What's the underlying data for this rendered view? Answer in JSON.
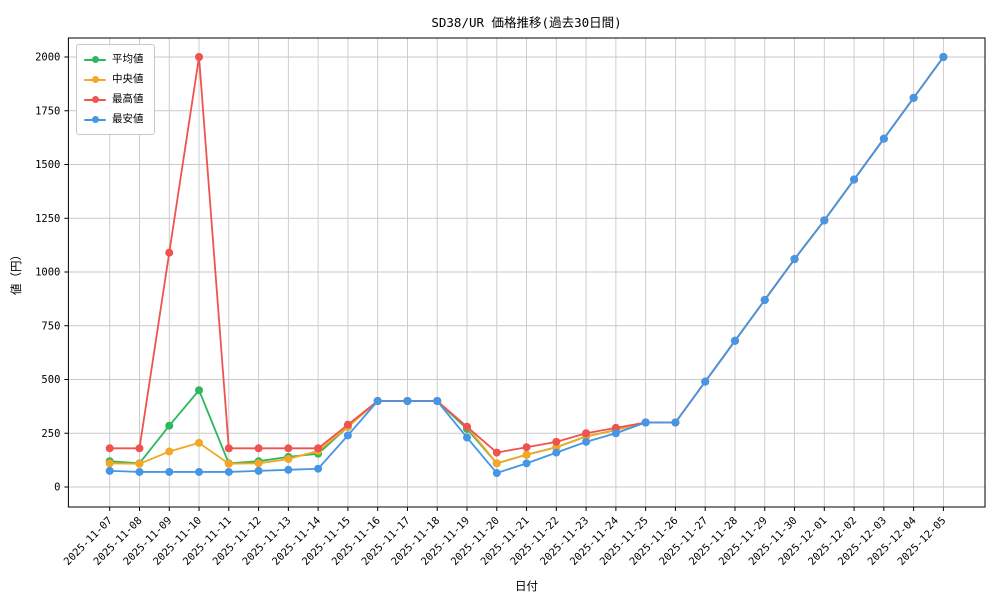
{
  "chart_data": {
    "type": "line",
    "title": "SD38/UR 価格推移(過去30日間)",
    "xlabel": "日付",
    "ylabel": "値（円）",
    "legend_position": "upper left",
    "grid": true,
    "ylim": [
      -100,
      2100
    ],
    "yticks": [
      0,
      250,
      500,
      750,
      1000,
      1250,
      1500,
      1750,
      2000
    ],
    "x": [
      "2025-11-07",
      "2025-11-08",
      "2025-11-09",
      "2025-11-10",
      "2025-11-11",
      "2025-11-12",
      "2025-11-13",
      "2025-11-14",
      "2025-11-15",
      "2025-11-16",
      "2025-11-17",
      "2025-11-18",
      "2025-11-19",
      "2025-11-20",
      "2025-11-21",
      "2025-11-22",
      "2025-11-23",
      "2025-11-24",
      "2025-11-25",
      "2025-11-26",
      "2025-11-27",
      "2025-11-28",
      "2025-11-29",
      "2025-11-30",
      "2025-12-01",
      "2025-12-02",
      "2025-12-03",
      "2025-12-04",
      "2025-12-05"
    ],
    "series": [
      {
        "name": "平均値",
        "color": "#2eb85c",
        "values": [
          120,
          110,
          285,
          450,
          110,
          120,
          140,
          155,
          280,
          400,
          400,
          400,
          270,
          110,
          150,
          185,
          235,
          265,
          300,
          300,
          490,
          680,
          870,
          1060,
          1240,
          1430,
          1620,
          1810,
          2000
        ]
      },
      {
        "name": "中央値",
        "color": "#f5a623",
        "values": [
          110,
          108,
          165,
          205,
          108,
          110,
          130,
          168,
          280,
          400,
          400,
          400,
          280,
          110,
          150,
          185,
          235,
          265,
          300,
          300,
          490,
          680,
          870,
          1060,
          1240,
          1430,
          1620,
          1810,
          2000
        ]
      },
      {
        "name": "最高値",
        "color": "#ef5350",
        "values": [
          180,
          180,
          1090,
          2000,
          180,
          180,
          180,
          180,
          290,
          400,
          400,
          400,
          280,
          160,
          185,
          210,
          250,
          275,
          300,
          300,
          490,
          680,
          870,
          1060,
          1240,
          1430,
          1620,
          1810,
          2000
        ]
      },
      {
        "name": "最安値",
        "color": "#4596e6",
        "values": [
          75,
          70,
          70,
          70,
          70,
          75,
          80,
          85,
          240,
          400,
          400,
          400,
          230,
          65,
          110,
          160,
          210,
          250,
          300,
          300,
          490,
          680,
          870,
          1060,
          1240,
          1430,
          1620,
          1810,
          2000
        ]
      }
    ],
    "colors": {
      "grid": "#c9c9c9",
      "frame": "#000000",
      "background": "#ffffff"
    }
  }
}
